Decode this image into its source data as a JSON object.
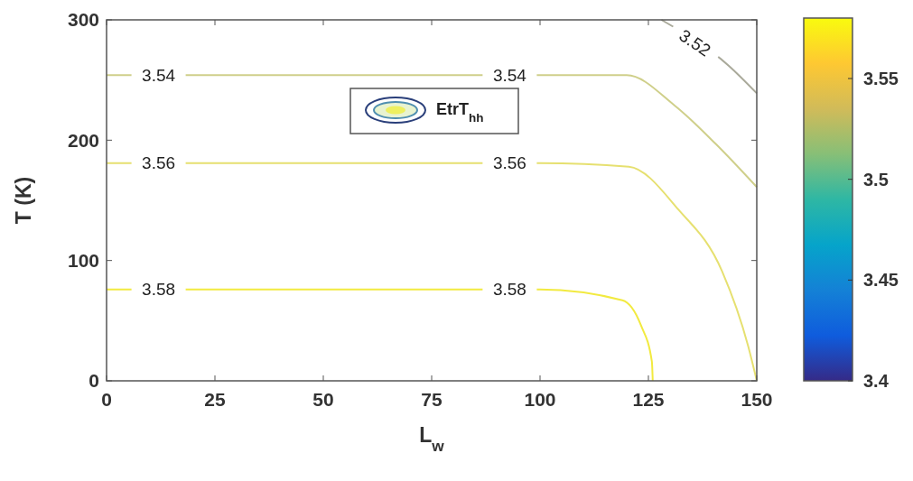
{
  "chart_data": {
    "type": "line",
    "xlabel": "L$_{w}$",
    "ylabel": "T (K)",
    "xlim": [
      0,
      150
    ],
    "ylim": [
      0,
      300
    ],
    "xticks": [
      0,
      25,
      50,
      75,
      100,
      125,
      150
    ],
    "yticks": [
      0,
      100,
      200,
      300
    ],
    "legend": "top",
    "legend_title": "EtrT$_{hh}$",
    "clim": [
      3.4,
      3.58
    ],
    "cticks": [
      3.4,
      3.45,
      3.5,
      3.55
    ],
    "series": [
      {
        "name": "3.52",
        "color": "#a9a99a",
        "x": [
          128,
          143.5,
          150
        ],
        "values": [
          300,
          262,
          239
        ]
      },
      {
        "name": "3.54",
        "color": "#cfcf8a",
        "x": [
          0,
          120,
          131,
          140.5,
          150
        ],
        "values": [
          254,
          254,
          229,
          197,
          161
        ]
      },
      {
        "name": "3.56",
        "color": "#e6e070",
        "x": [
          0,
          100,
          120.5,
          132,
          142,
          148,
          150
        ],
        "values": [
          181,
          181,
          178,
          142,
          91,
          29,
          0
        ]
      },
      {
        "name": "3.58",
        "color": "#f2ea40",
        "x": [
          0,
          100,
          119,
          123.3,
          125.8,
          126
        ],
        "values": [
          76,
          76,
          67,
          46,
          16,
          0
        ]
      }
    ]
  }
}
